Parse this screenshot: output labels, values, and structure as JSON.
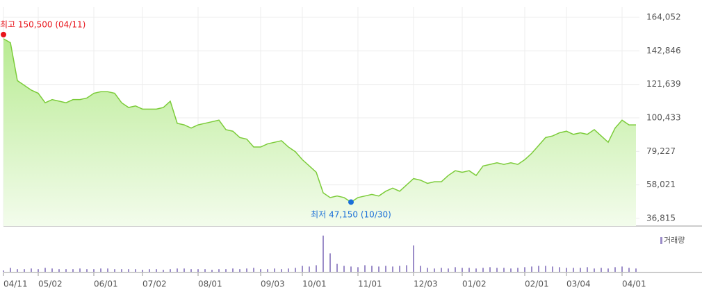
{
  "chart_data": {
    "type": "line",
    "categories": [
      "04/11",
      null,
      null,
      null,
      null,
      "05/02",
      null,
      null,
      null,
      null,
      null,
      null,
      null,
      "06/01",
      null,
      null,
      null,
      null,
      null,
      null,
      "07/02",
      null,
      null,
      null,
      null,
      null,
      null,
      null,
      "08/01",
      null,
      null,
      null,
      null,
      null,
      null,
      null,
      null,
      "09/03",
      null,
      null,
      null,
      null,
      null,
      "10/01",
      null,
      null,
      null,
      null,
      null,
      null,
      null,
      "11/01",
      null,
      null,
      null,
      null,
      null,
      null,
      null,
      "12/03",
      null,
      null,
      null,
      null,
      null,
      null,
      "01/02",
      null,
      null,
      null,
      null,
      null,
      null,
      null,
      null,
      "02/01",
      null,
      null,
      null,
      null,
      null,
      "03/04",
      null,
      null,
      null,
      null,
      null,
      null,
      null,
      "04/01",
      null,
      null
    ],
    "values": [
      150500,
      148000,
      124000,
      121000,
      118000,
      116000,
      110000,
      112000,
      111000,
      110000,
      112000,
      112000,
      113000,
      116000,
      117000,
      117000,
      116000,
      110000,
      107000,
      108000,
      106000,
      106000,
      106000,
      107000,
      111000,
      97000,
      96000,
      94000,
      96000,
      97000,
      98000,
      99000,
      93000,
      92000,
      88000,
      87000,
      82000,
      82000,
      84000,
      85000,
      86000,
      82000,
      79000,
      74000,
      70000,
      66000,
      53000,
      50000,
      51000,
      50000,
      47150,
      50000,
      51000,
      52000,
      51000,
      54000,
      56000,
      54000,
      58000,
      62000,
      61000,
      59000,
      60000,
      60000,
      64000,
      67000,
      66000,
      67000,
      64000,
      70000,
      71000,
      72000,
      71000,
      72000,
      71000,
      74000,
      78000,
      83000,
      88000,
      89000,
      91000,
      92000,
      90000,
      91000,
      90000,
      93000,
      89000,
      85000,
      94000,
      99000,
      96000,
      96000
    ],
    "color": "#7ccc3a",
    "ylim": [
      36815,
      164052
    ],
    "yticks": [
      {
        "value": 36815,
        "label": "36,815"
      },
      {
        "value": 58021,
        "label": "58,021"
      },
      {
        "value": 79227,
        "label": "79,227"
      },
      {
        "value": 100433,
        "label": "100,433"
      },
      {
        "value": 121639,
        "label": "121,639"
      },
      {
        "value": 142846,
        "label": "142,846"
      },
      {
        "value": 164052,
        "label": "164,052"
      }
    ],
    "grid": true,
    "high_label": "최고 150,500 (04/11)",
    "low_label": "최저 47,150 (10/30)",
    "volume": {
      "name": "거래량",
      "color": "#9b8cc8",
      "ylim": [
        0,
        60
      ],
      "values": [
        2,
        6,
        4,
        4,
        5,
        4,
        6,
        5,
        4,
        4,
        4,
        5,
        4,
        4,
        5,
        5,
        4,
        4,
        4,
        4,
        3,
        4,
        4,
        3,
        4,
        5,
        5,
        4,
        4,
        4,
        3,
        4,
        4,
        5,
        4,
        5,
        6,
        4,
        4,
        5,
        4,
        5,
        6,
        9,
        8,
        10,
        55,
        28,
        12,
        9,
        8,
        7,
        10,
        9,
        8,
        9,
        8,
        9,
        10,
        40,
        9,
        6,
        5,
        6,
        5,
        7,
        6,
        6,
        5,
        6,
        7,
        6,
        6,
        5,
        6,
        7,
        8,
        9,
        9,
        8,
        7,
        6,
        6,
        6,
        7,
        5,
        6,
        5,
        7,
        8,
        6,
        5
      ]
    }
  }
}
